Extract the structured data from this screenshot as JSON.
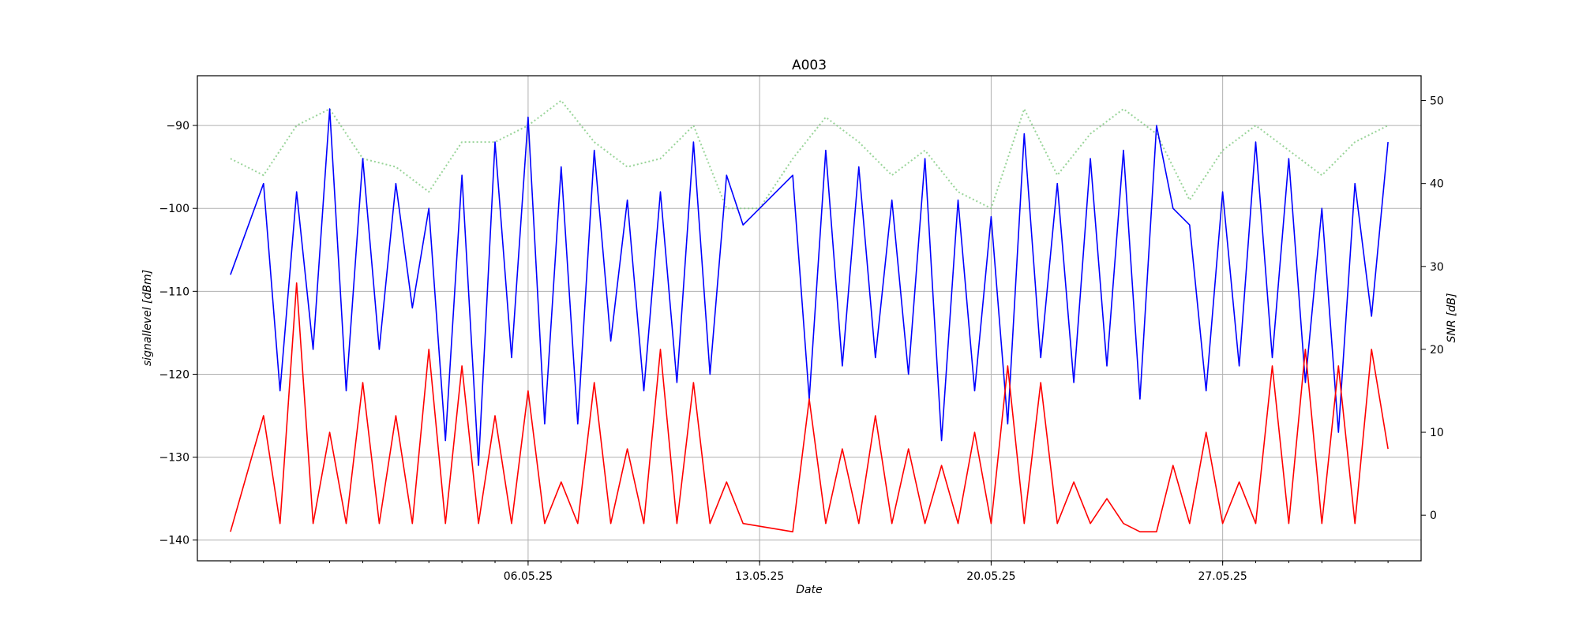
{
  "chart_data": {
    "type": "line",
    "title": "A003",
    "xlabel": "Date",
    "ylabel_left": "signallevel [dBm]",
    "ylabel_right": "SNR [dB]",
    "x_axis_type": "date",
    "xlim": [
      "2025-04-26",
      "2025-06-02"
    ],
    "x_ticks": [
      {
        "date": "2025-05-06",
        "label": "06.05.25"
      },
      {
        "date": "2025-05-13",
        "label": "13.05.25"
      },
      {
        "date": "2025-05-20",
        "label": "20.05.25"
      },
      {
        "date": "2025-05-27",
        "label": "27.05.25"
      }
    ],
    "ylim_left": [
      -142.5,
      -84.0
    ],
    "y_ticks_left": [
      -90,
      -100,
      -110,
      -120,
      -130,
      -140
    ],
    "ylim_right": [
      -5.5,
      53.0
    ],
    "y_ticks_right": [
      50,
      40,
      30,
      20,
      10,
      0
    ],
    "grid": true,
    "colors": {
      "signal": "#0000ff",
      "snr": "#ff0000",
      "secondary": "#7fc97f"
    },
    "series": [
      {
        "axis": "left",
        "color": "#0000ff",
        "style": "solid",
        "x": [
          "2025-04-27",
          "2025-04-28",
          "2025-04-28T12:00",
          "2025-04-29",
          "2025-04-29T12:00",
          "2025-04-30",
          "2025-04-30T12:00",
          "2025-05-01",
          "2025-05-01T12:00",
          "2025-05-02",
          "2025-05-02T12:00",
          "2025-05-03",
          "2025-05-03T12:00",
          "2025-05-04",
          "2025-05-04T12:00",
          "2025-05-05",
          "2025-05-05T12:00",
          "2025-05-06",
          "2025-05-06T12:00",
          "2025-05-07",
          "2025-05-07T12:00",
          "2025-05-08",
          "2025-05-08T12:00",
          "2025-05-09",
          "2025-05-09T12:00",
          "2025-05-10",
          "2025-05-10T12:00",
          "2025-05-11",
          "2025-05-11T12:00",
          "2025-05-12",
          "2025-05-12T12:00",
          "2025-05-14",
          "2025-05-14T12:00",
          "2025-05-15",
          "2025-05-15T12:00",
          "2025-05-16",
          "2025-05-16T12:00",
          "2025-05-17",
          "2025-05-17T12:00",
          "2025-05-18",
          "2025-05-18T12:00",
          "2025-05-19",
          "2025-05-19T12:00",
          "2025-05-20",
          "2025-05-20T12:00",
          "2025-05-21",
          "2025-05-21T12:00",
          "2025-05-22",
          "2025-05-22T12:00",
          "2025-05-23",
          "2025-05-23T12:00",
          "2025-05-24",
          "2025-05-24T12:00",
          "2025-05-25",
          "2025-05-25T12:00",
          "2025-05-26",
          "2025-05-26T12:00",
          "2025-05-27",
          "2025-05-27T12:00",
          "2025-05-28",
          "2025-05-28T12:00",
          "2025-05-29",
          "2025-05-29T12:00",
          "2025-05-30",
          "2025-05-30T12:00",
          "2025-05-31",
          "2025-05-31T12:00",
          "2025-06-01"
        ],
        "y": [
          -108,
          -97,
          -122,
          -98,
          -117,
          -88,
          -122,
          -94,
          -117,
          -97,
          -112,
          -100,
          -128,
          -96,
          -131,
          -92,
          -118,
          -89,
          -126,
          -95,
          -126,
          -93,
          -116,
          -99,
          -122,
          -98,
          -121,
          -92,
          -120,
          -96,
          -102,
          -96,
          -123,
          -93,
          -119,
          -95,
          -118,
          -99,
          -120,
          -94,
          -128,
          -99,
          -122,
          -101,
          -126,
          -91,
          -118,
          -97,
          -121,
          -94,
          -119,
          -93,
          -123,
          -90,
          -100,
          -102,
          -122,
          -98,
          -119,
          -92,
          -118,
          -94,
          -121,
          -100,
          -127,
          -97,
          -113,
          -92
        ]
      },
      {
        "axis": "right",
        "color": "#ff0000",
        "style": "solid",
        "x": [
          "2025-04-27",
          "2025-04-28",
          "2025-04-28T12:00",
          "2025-04-29",
          "2025-04-29T12:00",
          "2025-04-30",
          "2025-04-30T12:00",
          "2025-05-01",
          "2025-05-01T12:00",
          "2025-05-02",
          "2025-05-02T12:00",
          "2025-05-03",
          "2025-05-03T12:00",
          "2025-05-04",
          "2025-05-04T12:00",
          "2025-05-05",
          "2025-05-05T12:00",
          "2025-05-06",
          "2025-05-06T12:00",
          "2025-05-07",
          "2025-05-07T12:00",
          "2025-05-08",
          "2025-05-08T12:00",
          "2025-05-09",
          "2025-05-09T12:00",
          "2025-05-10",
          "2025-05-10T12:00",
          "2025-05-11",
          "2025-05-11T12:00",
          "2025-05-12",
          "2025-05-12T12:00",
          "2025-05-14",
          "2025-05-14T12:00",
          "2025-05-15",
          "2025-05-15T12:00",
          "2025-05-16",
          "2025-05-16T12:00",
          "2025-05-17",
          "2025-05-17T12:00",
          "2025-05-18",
          "2025-05-18T12:00",
          "2025-05-19",
          "2025-05-19T12:00",
          "2025-05-20",
          "2025-05-20T12:00",
          "2025-05-21",
          "2025-05-21T12:00",
          "2025-05-22",
          "2025-05-22T12:00",
          "2025-05-23",
          "2025-05-23T12:00",
          "2025-05-24",
          "2025-05-24T12:00",
          "2025-05-25",
          "2025-05-25T12:00",
          "2025-05-26",
          "2025-05-26T12:00",
          "2025-05-27",
          "2025-05-27T12:00",
          "2025-05-28",
          "2025-05-28T12:00",
          "2025-05-29",
          "2025-05-29T12:00",
          "2025-05-30",
          "2025-05-30T12:00",
          "2025-05-31",
          "2025-05-31T12:00",
          "2025-06-01"
        ],
        "y": [
          -2,
          12,
          -1,
          28,
          -1,
          10,
          -1,
          16,
          -1,
          12,
          -1,
          20,
          -1,
          18,
          -1,
          12,
          -1,
          15,
          -1,
          4,
          -1,
          16,
          -1,
          8,
          -1,
          20,
          -1,
          16,
          -1,
          4,
          -1,
          -2,
          14,
          -1,
          8,
          -1,
          12,
          -1,
          8,
          -1,
          6,
          -1,
          10,
          -1,
          18,
          -1,
          16,
          -1,
          4,
          -1,
          2,
          -1,
          -2,
          -2,
          6,
          -1,
          10,
          -1,
          4,
          -1,
          18,
          -1,
          20,
          -1,
          18,
          -1,
          20,
          8
        ]
      },
      {
        "axis": "left",
        "color": "#7fc97f",
        "style": "dotted",
        "x": [
          "2025-04-27",
          "2025-04-28",
          "2025-04-29",
          "2025-04-30",
          "2025-05-01",
          "2025-05-02",
          "2025-05-03",
          "2025-05-04",
          "2025-05-05",
          "2025-05-06",
          "2025-05-07",
          "2025-05-08",
          "2025-05-09",
          "2025-05-10",
          "2025-05-11",
          "2025-05-12",
          "2025-05-13",
          "2025-05-14",
          "2025-05-15",
          "2025-05-16",
          "2025-05-17",
          "2025-05-18",
          "2025-05-19",
          "2025-05-20",
          "2025-05-21",
          "2025-05-22",
          "2025-05-23",
          "2025-05-24",
          "2025-05-25",
          "2025-05-26",
          "2025-05-27",
          "2025-05-28",
          "2025-05-29",
          "2025-05-30",
          "2025-05-31",
          "2025-06-01"
        ],
        "y": [
          -94,
          -96,
          -90,
          -88,
          -94,
          -95,
          -98,
          -92,
          -92,
          -90,
          -87,
          -92,
          -95,
          -94,
          -90,
          -100,
          -100,
          -94,
          -89,
          -92,
          -96,
          -93,
          -98,
          -100,
          -88,
          -96,
          -91,
          -88,
          -91,
          -99,
          -93,
          -90,
          -93,
          -96,
          -92,
          -90
        ]
      }
    ]
  }
}
